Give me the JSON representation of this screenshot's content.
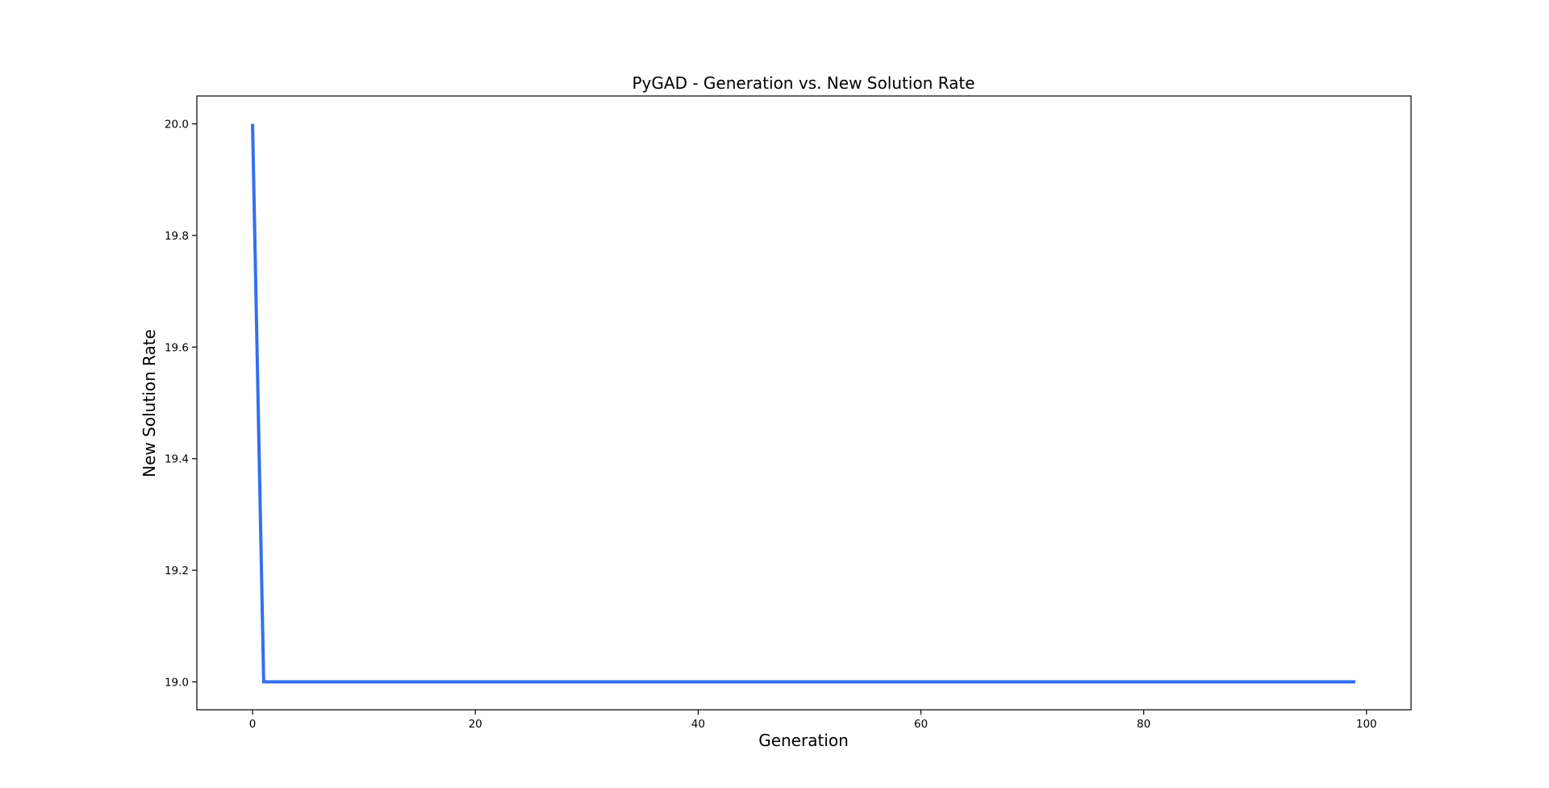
{
  "chart_data": {
    "type": "line",
    "title": "PyGAD - Generation vs. New Solution Rate",
    "xlabel": "Generation",
    "ylabel": "New Solution Rate",
    "xlim": [
      -5,
      104
    ],
    "ylim": [
      18.95,
      20.05
    ],
    "xticks": [
      0,
      20,
      40,
      60,
      80,
      100
    ],
    "xtick_labels": [
      "0",
      "20",
      "40",
      "60",
      "80",
      "100"
    ],
    "yticks": [
      19.0,
      19.2,
      19.4,
      19.6,
      19.8,
      20.0
    ],
    "ytick_labels": [
      "19.0",
      "19.2",
      "19.4",
      "19.6",
      "19.8",
      "20.0"
    ],
    "grid": false,
    "legend": "none",
    "series": [
      {
        "color": "#3370F0",
        "points": [
          [
            0,
            20.0
          ],
          [
            1,
            19.0
          ],
          [
            99,
            19.0
          ]
        ]
      }
    ]
  }
}
